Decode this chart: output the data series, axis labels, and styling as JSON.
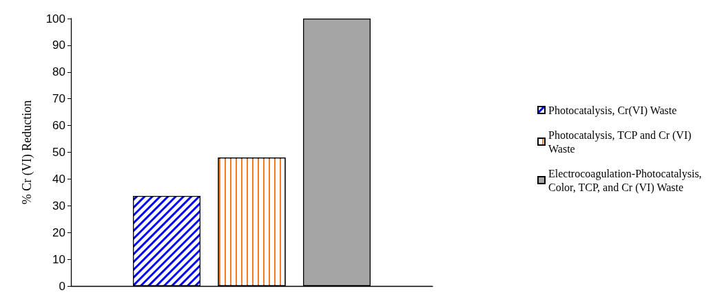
{
  "chart_data": {
    "type": "bar",
    "ylabel": "% Cr (VI) Reduction",
    "categories": [
      null
    ],
    "series": [
      {
        "name": "Photocatalysis, Cr(VI) Waste",
        "color": "#0000ff",
        "values": [
          33.7
        ]
      },
      {
        "name": "Photocatalysis, TCP and Cr (VI) Waste",
        "color": "#ed7d31",
        "values": [
          48
        ]
      },
      {
        "name": "Electrocoagulation-Photocatalysis, Color, TCP, and Cr (VI) Waste",
        "color": "#a5a5a5",
        "values": [
          100
        ]
      }
    ],
    "ylim": [
      0,
      100
    ],
    "yticks": [
      0,
      10,
      20,
      30,
      40,
      50,
      60,
      70,
      80,
      90,
      100
    ],
    "grid": false,
    "legend": "right"
  }
}
